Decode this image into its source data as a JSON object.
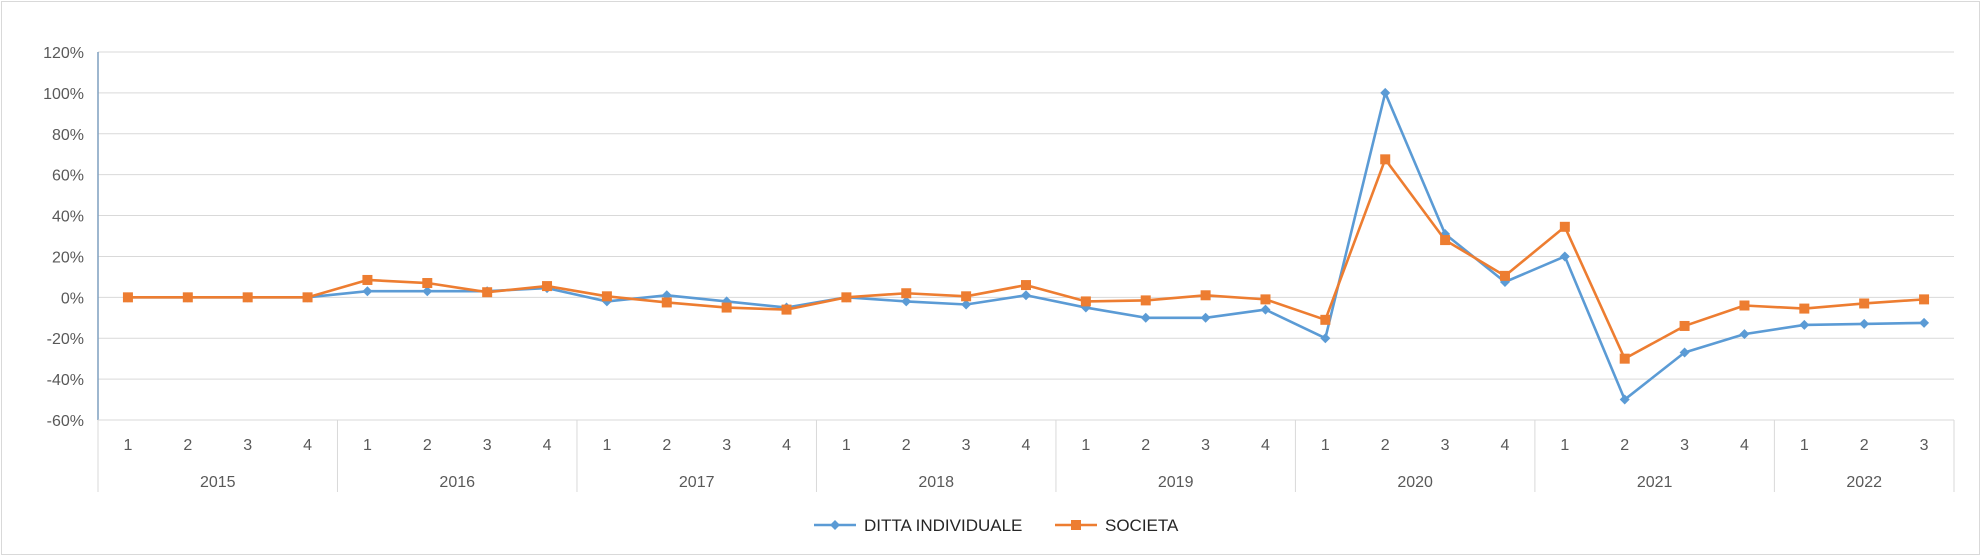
{
  "chart_data": {
    "type": "line",
    "title": "",
    "xlabel": "",
    "ylabel": "",
    "ylim": [
      -60,
      120
    ],
    "y_tick_step": 20,
    "y_tick_format": "percent",
    "grid": true,
    "legend_position": "bottom",
    "groups": [
      {
        "label": "2015",
        "quarters": [
          "1",
          "2",
          "3",
          "4"
        ]
      },
      {
        "label": "2016",
        "quarters": [
          "1",
          "2",
          "3",
          "4"
        ]
      },
      {
        "label": "2017",
        "quarters": [
          "1",
          "2",
          "3",
          "4"
        ]
      },
      {
        "label": "2018",
        "quarters": [
          "1",
          "2",
          "3",
          "4"
        ]
      },
      {
        "label": "2019",
        "quarters": [
          "1",
          "2",
          "3",
          "4"
        ]
      },
      {
        "label": "2020",
        "quarters": [
          "1",
          "2",
          "3",
          "4"
        ]
      },
      {
        "label": "2021",
        "quarters": [
          "1",
          "2",
          "3",
          "4"
        ]
      },
      {
        "label": "2022",
        "quarters": [
          "1",
          "2",
          "3"
        ]
      }
    ],
    "series": [
      {
        "name": "DITTA INDIVIDUALE",
        "color": "#5b9bd5",
        "marker": "diamond",
        "values": [
          0,
          0,
          0,
          0,
          3,
          3,
          3,
          4.5,
          -2,
          1,
          -2,
          -5,
          0,
          -2,
          -3.5,
          1,
          -5,
          -10,
          -10,
          -6,
          -20,
          100,
          31,
          7.5,
          20,
          -50,
          -27,
          -18,
          -13.5,
          -13,
          -12.5
        ]
      },
      {
        "name": "SOCIETA",
        "color": "#ed7d31",
        "marker": "square",
        "values": [
          0,
          0,
          0,
          0,
          8.5,
          7,
          2.5,
          5.5,
          0.5,
          -2.5,
          -5,
          -6,
          0,
          2,
          0.5,
          6,
          -2,
          -1.5,
          1,
          -1,
          -11,
          67.5,
          28,
          10.5,
          34.5,
          -30,
          -14,
          -4,
          -5.5,
          -3,
          -1
        ]
      }
    ]
  }
}
